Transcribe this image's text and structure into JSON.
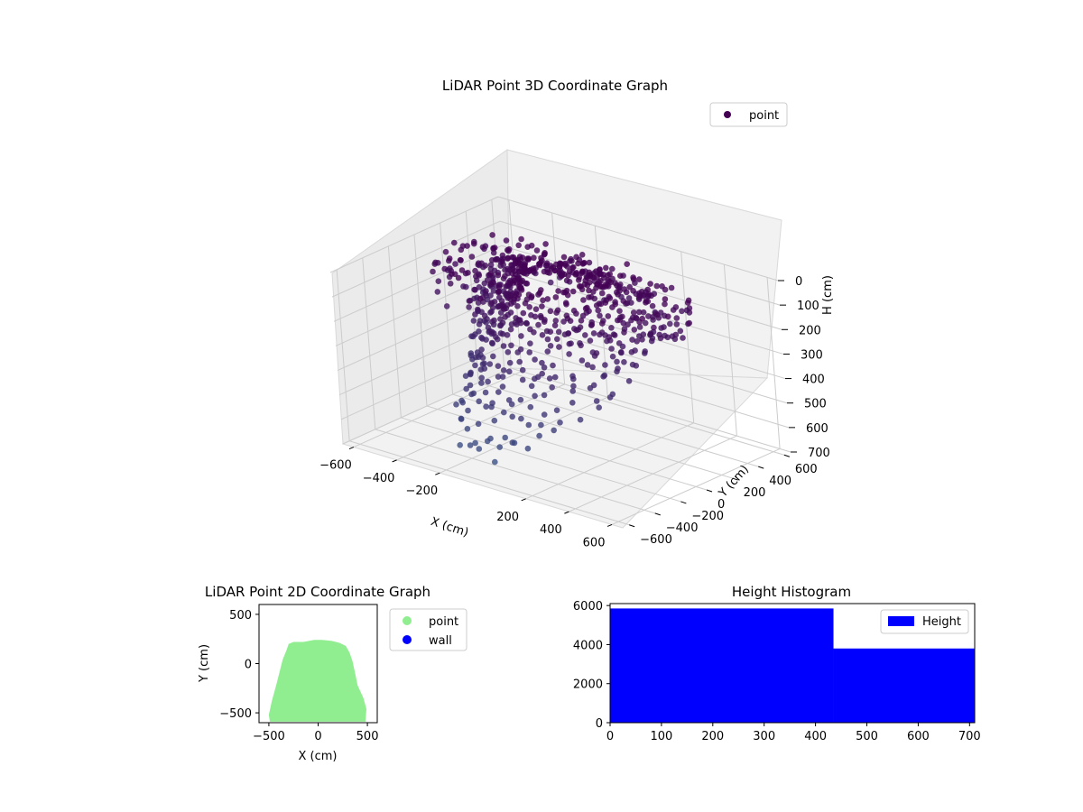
{
  "chart_data": [
    {
      "type": "scatter3d",
      "title": "LiDAR Point 3D Coordinate Graph",
      "xlabel": "X (cm)",
      "ylabel": "Y (cm)",
      "zlabel": "H (cm)",
      "xlim": [
        -650,
        650
      ],
      "ylim": [
        -650,
        650
      ],
      "zlim": [
        0,
        700
      ],
      "z_inverted": true,
      "x_ticks": [
        -600,
        -400,
        -200,
        200,
        400,
        600
      ],
      "x_tick_labels": [
        "−600",
        "−400",
        "−200",
        "200",
        "400",
        "600"
      ],
      "y_ticks": [
        -600,
        -400,
        -200,
        0,
        200,
        400,
        600
      ],
      "y_tick_labels": [
        "−600",
        "−400",
        "−200",
        "0",
        "200",
        "400",
        "600"
      ],
      "z_ticks": [
        0,
        100,
        200,
        300,
        400,
        500,
        600,
        700
      ],
      "z_tick_labels": [
        "0",
        "100",
        "200",
        "300",
        "400",
        "500",
        "600",
        "700"
      ],
      "legend": {
        "label": "point",
        "location": "upper right",
        "color": "#440154"
      },
      "colormap": "viridis",
      "series": [
        {
          "name": "point",
          "points_xyz": [
            [
              -520,
              300,
              100
            ],
            [
              -480,
              240,
              150
            ],
            [
              -460,
              180,
              120
            ],
            [
              -430,
              120,
              200
            ],
            [
              -400,
              60,
              250
            ],
            [
              -380,
              0,
              180
            ],
            [
              -350,
              -60,
              300
            ],
            [
              -320,
              -120,
              260
            ],
            [
              -300,
              -180,
              330
            ],
            [
              -280,
              -240,
              380
            ],
            [
              -260,
              -300,
              420
            ],
            [
              -240,
              -360,
              460
            ],
            [
              -220,
              -420,
              500
            ],
            [
              -200,
              -480,
              540
            ],
            [
              -150,
              -520,
              580
            ],
            [
              -100,
              -560,
              600
            ],
            [
              -50,
              -560,
              620
            ],
            [
              0,
              -540,
              600
            ],
            [
              60,
              -520,
              560
            ],
            [
              120,
              -500,
              520
            ],
            [
              180,
              -480,
              480
            ],
            [
              240,
              -440,
              440
            ],
            [
              300,
              -380,
              400
            ],
            [
              360,
              -320,
              360
            ],
            [
              400,
              -260,
              320
            ],
            [
              420,
              -180,
              280
            ],
            [
              430,
              -100,
              240
            ],
            [
              430,
              -20,
              200
            ],
            [
              420,
              60,
              160
            ],
            [
              400,
              140,
              120
            ],
            [
              360,
              200,
              80
            ],
            [
              300,
              230,
              40
            ],
            [
              200,
              240,
              20
            ],
            [
              100,
              240,
              10
            ],
            [
              0,
              240,
              10
            ],
            [
              -100,
              240,
              20
            ],
            [
              -200,
              230,
              40
            ],
            [
              -300,
              200,
              70
            ]
          ]
        }
      ]
    },
    {
      "type": "scatter",
      "title": "LiDAR Point 2D Coordinate Graph",
      "xlabel": "X (cm)",
      "ylabel": "Y (cm)",
      "xlim": [
        -600,
        600
      ],
      "ylim": [
        -600,
        600
      ],
      "x_ticks": [
        -500,
        0,
        500
      ],
      "x_tick_labels": [
        "−500",
        "0",
        "500"
      ],
      "y_ticks": [
        -500,
        0,
        500
      ],
      "y_tick_labels": [
        "−500",
        "0",
        "500"
      ],
      "legend": [
        "point",
        "wall"
      ],
      "series": [
        {
          "name": "point",
          "color": "#90ee90",
          "outline_xy": [
            [
              -490,
              -590
            ],
            [
              -500,
              -520
            ],
            [
              -470,
              -380
            ],
            [
              -420,
              -200
            ],
            [
              -390,
              -80
            ],
            [
              -360,
              40
            ],
            [
              -320,
              140
            ],
            [
              -300,
              200
            ],
            [
              -250,
              220
            ],
            [
              -150,
              220
            ],
            [
              -40,
              240
            ],
            [
              40,
              240
            ],
            [
              140,
              230
            ],
            [
              220,
              210
            ],
            [
              280,
              180
            ],
            [
              320,
              110
            ],
            [
              350,
              20
            ],
            [
              380,
              -120
            ],
            [
              400,
              -220
            ],
            [
              460,
              -350
            ],
            [
              490,
              -460
            ],
            [
              480,
              -590
            ]
          ]
        },
        {
          "name": "wall",
          "color": "#0000ff",
          "points_xy": []
        }
      ]
    },
    {
      "type": "bar",
      "title": "Height Histogram",
      "xlim": [
        0,
        710
      ],
      "ylim": [
        0,
        6100
      ],
      "x_ticks": [
        0,
        100,
        200,
        300,
        400,
        500,
        600,
        700
      ],
      "x_tick_labels": [
        "0",
        "100",
        "200",
        "300",
        "400",
        "500",
        "600",
        "700"
      ],
      "y_ticks": [
        0,
        2000,
        4000,
        6000
      ],
      "y_tick_labels": [
        "0",
        "2000",
        "4000",
        "6000"
      ],
      "legend": {
        "label": "Height",
        "location": "upper right"
      },
      "bars": [
        {
          "x0": 0,
          "x1": 435,
          "value": 5850
        },
        {
          "x0": 435,
          "x1": 710,
          "value": 3800
        }
      ],
      "color": "#0000ff"
    }
  ]
}
